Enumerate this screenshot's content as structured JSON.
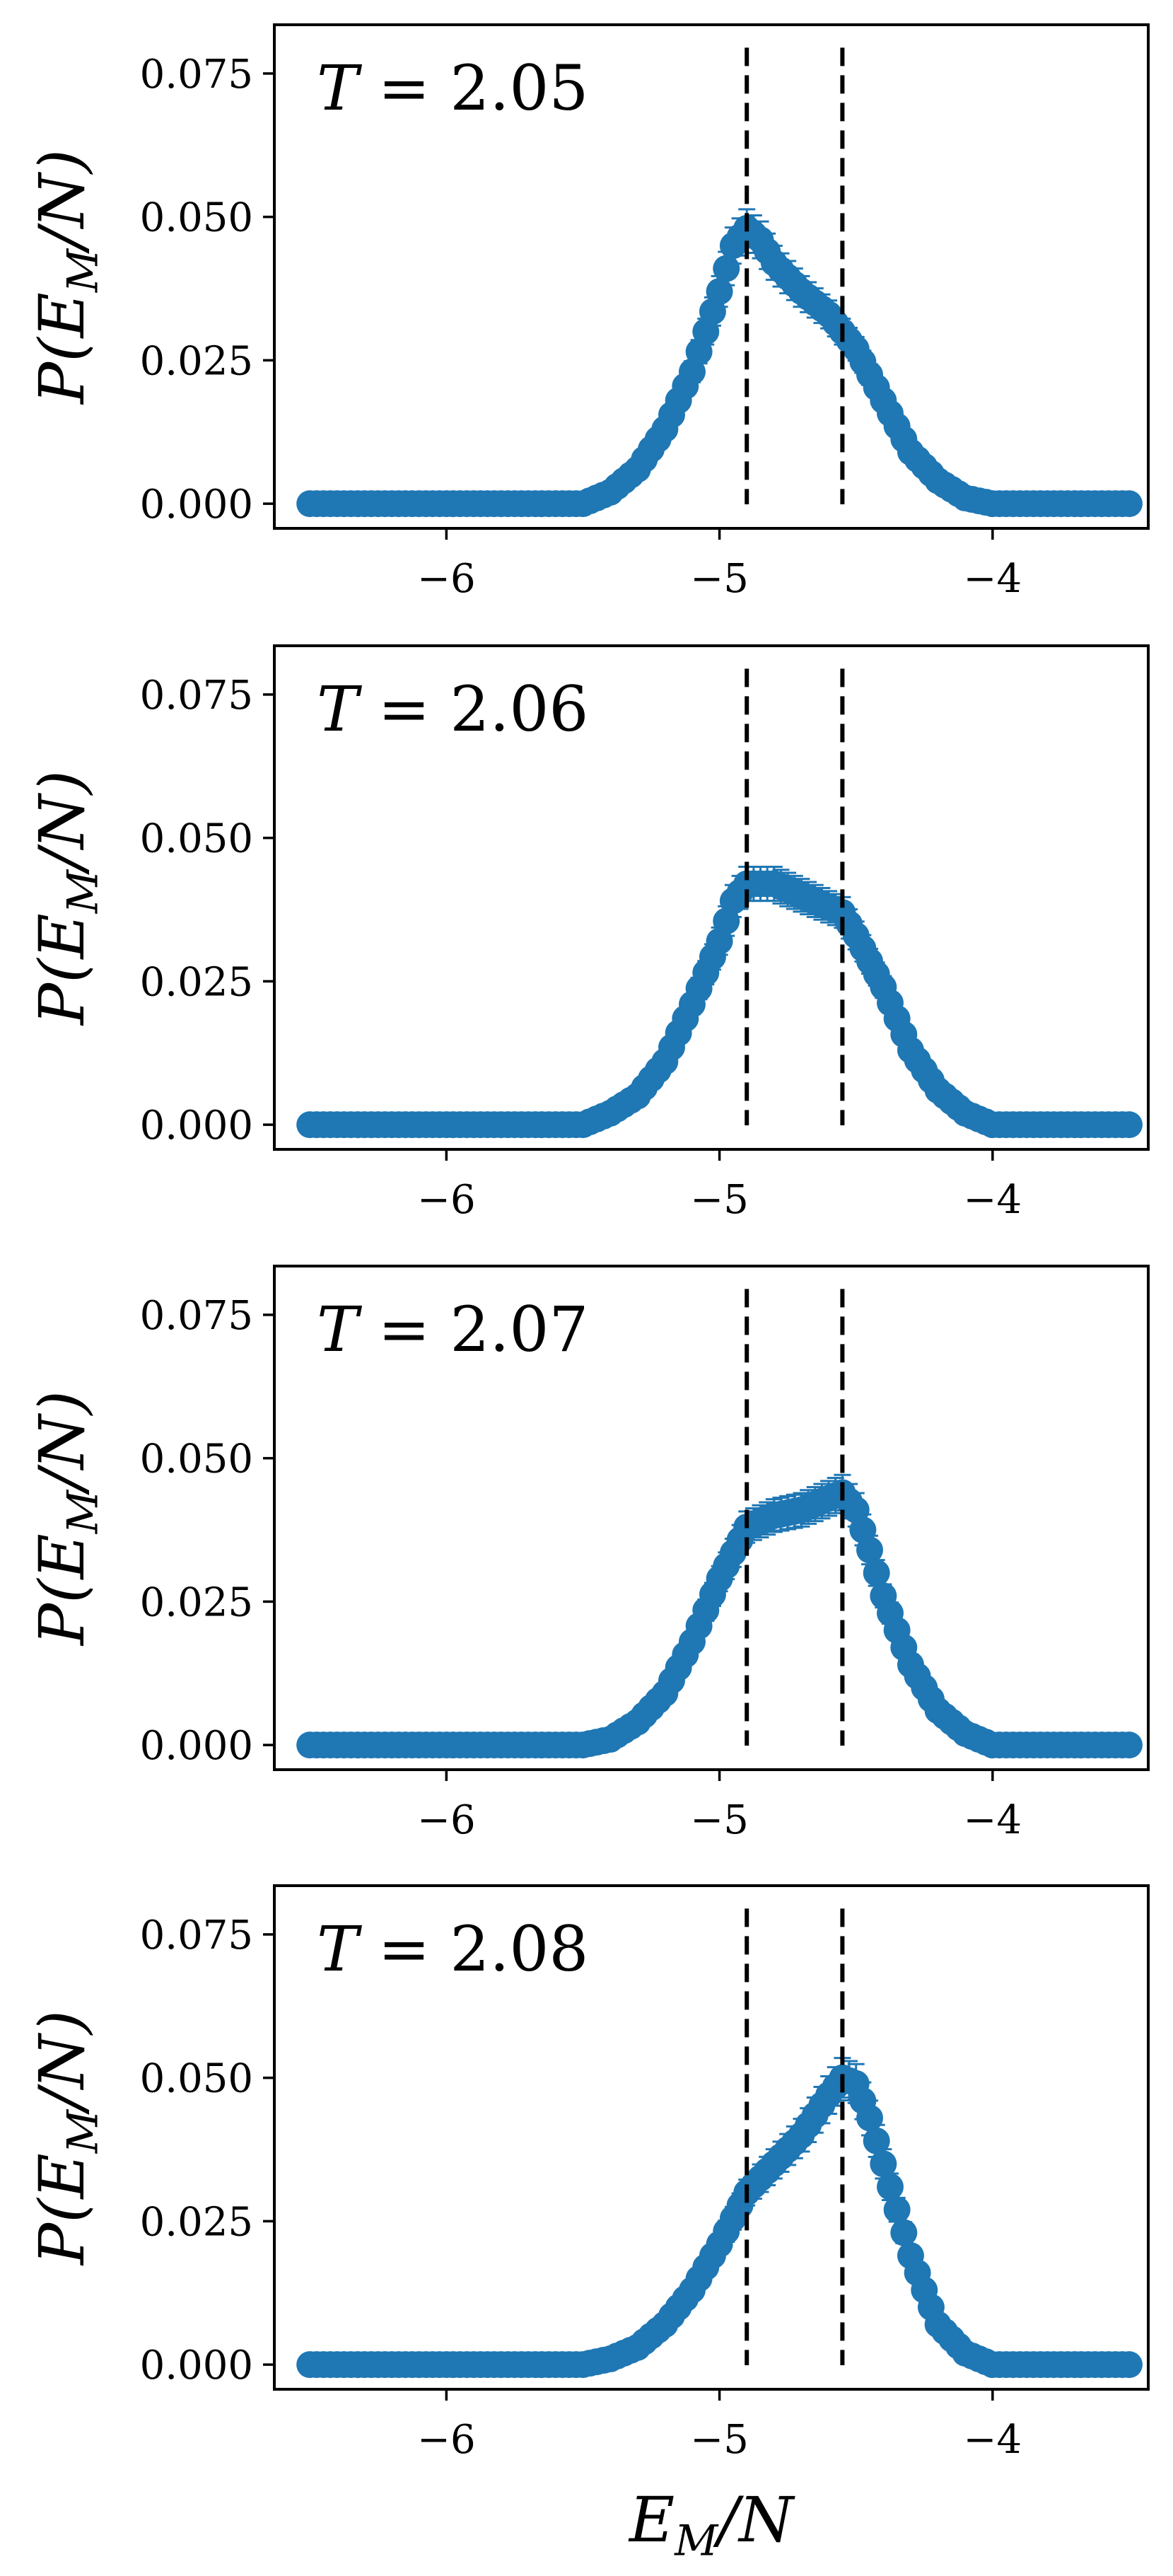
{
  "figure": {
    "xlabel": "E_M/N",
    "marker_color": "#1f77b4",
    "vline_color": "#000000"
  },
  "chart_data": [
    {
      "type": "scatter",
      "annotation": "T = 2.05",
      "ylabel": "P(E_M/N)",
      "xlim": [
        -6.63,
        -3.43
      ],
      "ylim": [
        -0.0043,
        0.0835
      ],
      "xticks": [
        -6,
        -5,
        -4
      ],
      "xtick_labels": [
        "−6",
        "−5",
        "−4"
      ],
      "yticks": [
        0.0,
        0.025,
        0.05,
        0.075
      ],
      "ytick_labels": [
        "0.000",
        "0.025",
        "0.050",
        "0.075"
      ],
      "vlines": [
        -4.9,
        -4.55
      ],
      "x_range": [
        -6.5,
        -3.5
      ],
      "points": 121,
      "curve": [
        [
          -5.5,
          0.0
        ],
        [
          -5.4,
          0.002
        ],
        [
          -5.3,
          0.006
        ],
        [
          -5.2,
          0.013
        ],
        [
          -5.1,
          0.023
        ],
        [
          -5.0,
          0.037
        ],
        [
          -4.95,
          0.045
        ],
        [
          -4.9,
          0.048
        ],
        [
          -4.85,
          0.046
        ],
        [
          -4.8,
          0.042
        ],
        [
          -4.7,
          0.037
        ],
        [
          -4.6,
          0.033
        ],
        [
          -4.5,
          0.027
        ],
        [
          -4.4,
          0.018
        ],
        [
          -4.3,
          0.009
        ],
        [
          -4.2,
          0.004
        ],
        [
          -4.1,
          0.001
        ],
        [
          -4.0,
          0.0
        ]
      ]
    },
    {
      "type": "scatter",
      "annotation": "T = 2.06",
      "ylabel": "P(E_M/N)",
      "xlim": [
        -6.63,
        -3.43
      ],
      "ylim": [
        -0.0043,
        0.0835
      ],
      "xticks": [
        -6,
        -5,
        -4
      ],
      "xtick_labels": [
        "−6",
        "−5",
        "−4"
      ],
      "yticks": [
        0.0,
        0.025,
        0.05,
        0.075
      ],
      "ytick_labels": [
        "0.000",
        "0.025",
        "0.050",
        "0.075"
      ],
      "vlines": [
        -4.9,
        -4.55
      ],
      "x_range": [
        -6.5,
        -3.5
      ],
      "points": 121,
      "curve": [
        [
          -5.5,
          0.0
        ],
        [
          -5.4,
          0.002
        ],
        [
          -5.3,
          0.005
        ],
        [
          -5.2,
          0.011
        ],
        [
          -5.1,
          0.021
        ],
        [
          -5.0,
          0.032
        ],
        [
          -4.95,
          0.039
        ],
        [
          -4.9,
          0.042
        ],
        [
          -4.8,
          0.042
        ],
        [
          -4.7,
          0.04
        ],
        [
          -4.6,
          0.038
        ],
        [
          -4.55,
          0.037
        ],
        [
          -4.5,
          0.033
        ],
        [
          -4.4,
          0.024
        ],
        [
          -4.3,
          0.013
        ],
        [
          -4.2,
          0.006
        ],
        [
          -4.1,
          0.002
        ],
        [
          -4.0,
          0.0
        ]
      ]
    },
    {
      "type": "scatter",
      "annotation": "T = 2.07",
      "ylabel": "P(E_M/N)",
      "xlim": [
        -6.63,
        -3.43
      ],
      "ylim": [
        -0.0043,
        0.0835
      ],
      "xticks": [
        -6,
        -5,
        -4
      ],
      "xtick_labels": [
        "−6",
        "−5",
        "−4"
      ],
      "yticks": [
        0.0,
        0.025,
        0.05,
        0.075
      ],
      "ytick_labels": [
        "0.000",
        "0.025",
        "0.050",
        "0.075"
      ],
      "vlines": [
        -4.9,
        -4.55
      ],
      "x_range": [
        -6.5,
        -3.5
      ],
      "points": 121,
      "curve": [
        [
          -5.5,
          0.0
        ],
        [
          -5.4,
          0.001
        ],
        [
          -5.3,
          0.004
        ],
        [
          -5.2,
          0.009
        ],
        [
          -5.1,
          0.018
        ],
        [
          -5.0,
          0.029
        ],
        [
          -4.9,
          0.038
        ],
        [
          -4.8,
          0.04
        ],
        [
          -4.7,
          0.041
        ],
        [
          -4.6,
          0.043
        ],
        [
          -4.55,
          0.044
        ],
        [
          -4.5,
          0.041
        ],
        [
          -4.45,
          0.034
        ],
        [
          -4.4,
          0.026
        ],
        [
          -4.3,
          0.014
        ],
        [
          -4.2,
          0.006
        ],
        [
          -4.1,
          0.002
        ],
        [
          -4.0,
          0.0
        ]
      ]
    },
    {
      "type": "scatter",
      "annotation": "T = 2.08",
      "ylabel": "P(E_M/N)",
      "xlabel": "E_M/N",
      "xlim": [
        -6.63,
        -3.43
      ],
      "ylim": [
        -0.0043,
        0.0835
      ],
      "xticks": [
        -6,
        -5,
        -4
      ],
      "xtick_labels": [
        "−6",
        "−5",
        "−4"
      ],
      "yticks": [
        0.0,
        0.025,
        0.05,
        0.075
      ],
      "ytick_labels": [
        "0.000",
        "0.025",
        "0.050",
        "0.075"
      ],
      "vlines": [
        -4.9,
        -4.55
      ],
      "x_range": [
        -6.5,
        -3.5
      ],
      "points": 121,
      "curve": [
        [
          -5.5,
          0.0
        ],
        [
          -5.4,
          0.001
        ],
        [
          -5.3,
          0.003
        ],
        [
          -5.2,
          0.007
        ],
        [
          -5.1,
          0.013
        ],
        [
          -5.0,
          0.021
        ],
        [
          -4.9,
          0.03
        ],
        [
          -4.8,
          0.035
        ],
        [
          -4.7,
          0.04
        ],
        [
          -4.6,
          0.047
        ],
        [
          -4.55,
          0.05
        ],
        [
          -4.5,
          0.049
        ],
        [
          -4.45,
          0.043
        ],
        [
          -4.4,
          0.035
        ],
        [
          -4.3,
          0.019
        ],
        [
          -4.2,
          0.007
        ],
        [
          -4.1,
          0.002
        ],
        [
          -4.0,
          0.0
        ]
      ]
    }
  ]
}
